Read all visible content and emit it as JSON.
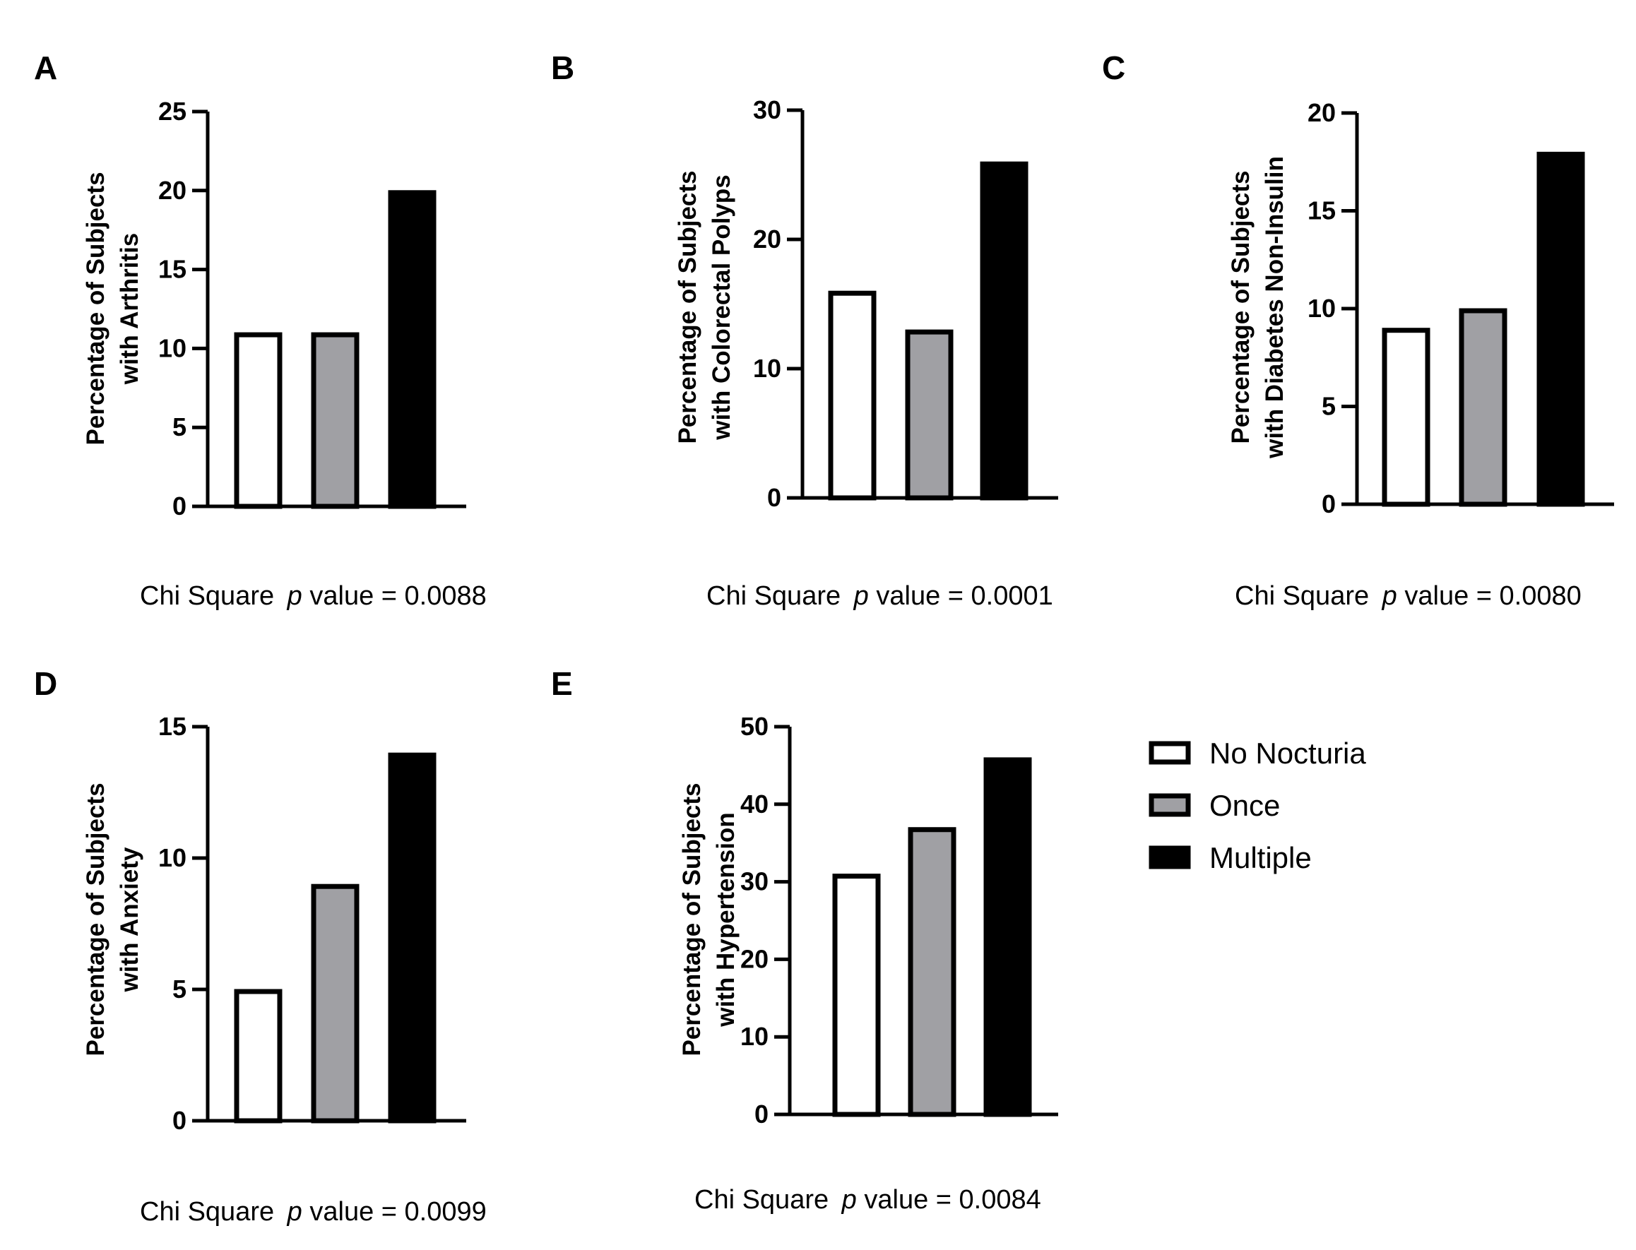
{
  "series_legend": [
    {
      "name": "No Nocturia",
      "fill": "#ffffff"
    },
    {
      "name": "Once",
      "fill": "#a0a0a4"
    },
    {
      "name": "Multiple",
      "fill": "#000000"
    }
  ],
  "chart_data": [
    {
      "panel": "A",
      "type": "bar",
      "ylabel": [
        "Percentage of Subjects",
        "with Arthritis"
      ],
      "ylim": [
        0,
        25
      ],
      "yticks": [
        0,
        5,
        10,
        15,
        20,
        25
      ],
      "categories": [
        "No Nocturia",
        "Once",
        "Multiple"
      ],
      "values": [
        11,
        11,
        20
      ],
      "stat": {
        "prefix": "Chi Square ",
        "p": "p",
        "suffix": " value = 0.0088"
      }
    },
    {
      "panel": "B",
      "type": "bar",
      "ylabel": [
        "Percentage of  Subjects",
        "with Colorectal Polyps"
      ],
      "ylim": [
        0,
        30
      ],
      "yticks": [
        0,
        10,
        20,
        30
      ],
      "categories": [
        "No Nocturia",
        "Once",
        "Multiple"
      ],
      "values": [
        16,
        13,
        26
      ],
      "stat": {
        "prefix": "Chi Square ",
        "p": "p",
        "suffix": " value = 0.0001"
      }
    },
    {
      "panel": "C",
      "type": "bar",
      "ylabel": [
        "Percentage of Subjects",
        "with Diabetes Non-Insulin"
      ],
      "ylim": [
        0,
        20
      ],
      "yticks": [
        0,
        5,
        10,
        15,
        20
      ],
      "categories": [
        "No Nocturia",
        "Once",
        "Multiple"
      ],
      "values": [
        9,
        10,
        18
      ],
      "stat": {
        "prefix": "Chi Square ",
        "p": "p",
        "suffix": " value = 0.0080"
      }
    },
    {
      "panel": "D",
      "type": "bar",
      "ylabel": [
        "Percentage of Subjects",
        "with Anxiety"
      ],
      "ylim": [
        0,
        15
      ],
      "yticks": [
        0,
        5,
        10,
        15
      ],
      "categories": [
        "No Nocturia",
        "Once",
        "Multiple"
      ],
      "values": [
        5,
        9,
        14
      ],
      "stat": {
        "prefix": "Chi Square ",
        "p": "p",
        "suffix": " value = 0.0099"
      }
    },
    {
      "panel": "E",
      "type": "bar",
      "ylabel": [
        "Percentage of Subjects",
        "with Hypertension"
      ],
      "ylim": [
        0,
        50
      ],
      "yticks": [
        0,
        10,
        20,
        30,
        40,
        50
      ],
      "categories": [
        "No Nocturia",
        "Once",
        "Multiple"
      ],
      "values": [
        31,
        37,
        46
      ],
      "stat": {
        "prefix": "Chi Square ",
        "p": "p",
        "suffix": " value = 0.0084"
      }
    }
  ]
}
